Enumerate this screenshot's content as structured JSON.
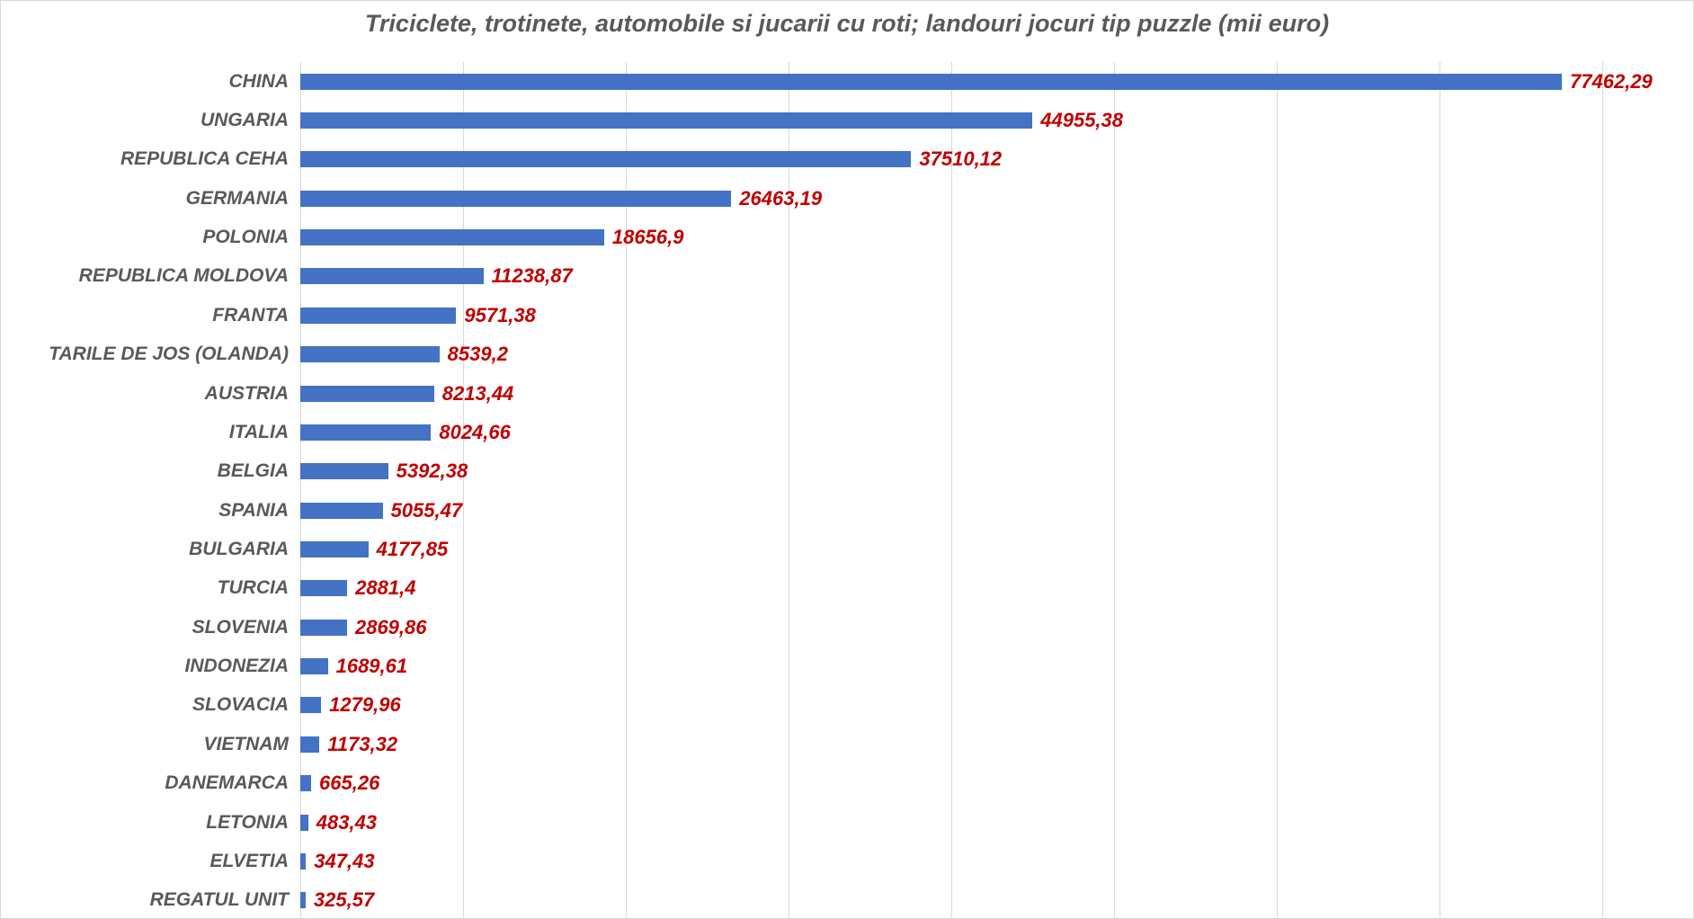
{
  "title": "Triciclete, trotinete, automobile si jucarii cu roti; landouri jocuri tip puzzle (mii euro)",
  "colors": {
    "bar": "#4472C4",
    "value_label": "#C00000",
    "category_label": "#595959",
    "title": "#595959",
    "gridline": "#D9D9D9",
    "chart_border": "#D9D9D9",
    "background": "#FFFFFF"
  },
  "chart_data": {
    "type": "bar",
    "orientation": "horizontal",
    "title": "Triciclete, trotinete, automobile si jucarii cu roti; landouri jocuri tip puzzle (mii euro)",
    "xlabel": "",
    "ylabel": "",
    "xlim": [
      0,
      80000
    ],
    "gridline_step": 10000,
    "grid": true,
    "legend": false,
    "value_labels_shown": true,
    "categories": [
      "CHINA",
      "UNGARIA",
      "REPUBLICA CEHA",
      "GERMANIA",
      "POLONIA",
      "REPUBLICA MOLDOVA",
      "FRANTA",
      "TARILE DE JOS (OLANDA)",
      "AUSTRIA",
      "ITALIA",
      "BELGIA",
      "SPANIA",
      "BULGARIA",
      "TURCIA",
      "SLOVENIA",
      "INDONEZIA",
      "SLOVACIA",
      "VIETNAM",
      "DANEMARCA",
      "LETONIA",
      "ELVETIA",
      "REGATUL UNIT"
    ],
    "values": [
      77462.29,
      44955.38,
      37510.12,
      26463.19,
      18656.9,
      11238.87,
      9571.38,
      8539.2,
      8213.44,
      8024.66,
      5392.38,
      5055.47,
      4177.85,
      2881.4,
      2869.86,
      1689.61,
      1279.96,
      1173.32,
      665.26,
      483.43,
      347.43,
      325.57
    ],
    "value_labels": [
      "77462,29",
      "44955,38",
      "37510,12",
      "26463,19",
      "18656,9",
      "11238,87",
      "9571,38",
      "8539,2",
      "8213,44",
      "8024,66",
      "5392,38",
      "5055,47",
      "4177,85",
      "2881,4",
      "2869,86",
      "1689,61",
      "1279,96",
      "1173,32",
      "665,26",
      "483,43",
      "347,43",
      "325,57"
    ]
  }
}
